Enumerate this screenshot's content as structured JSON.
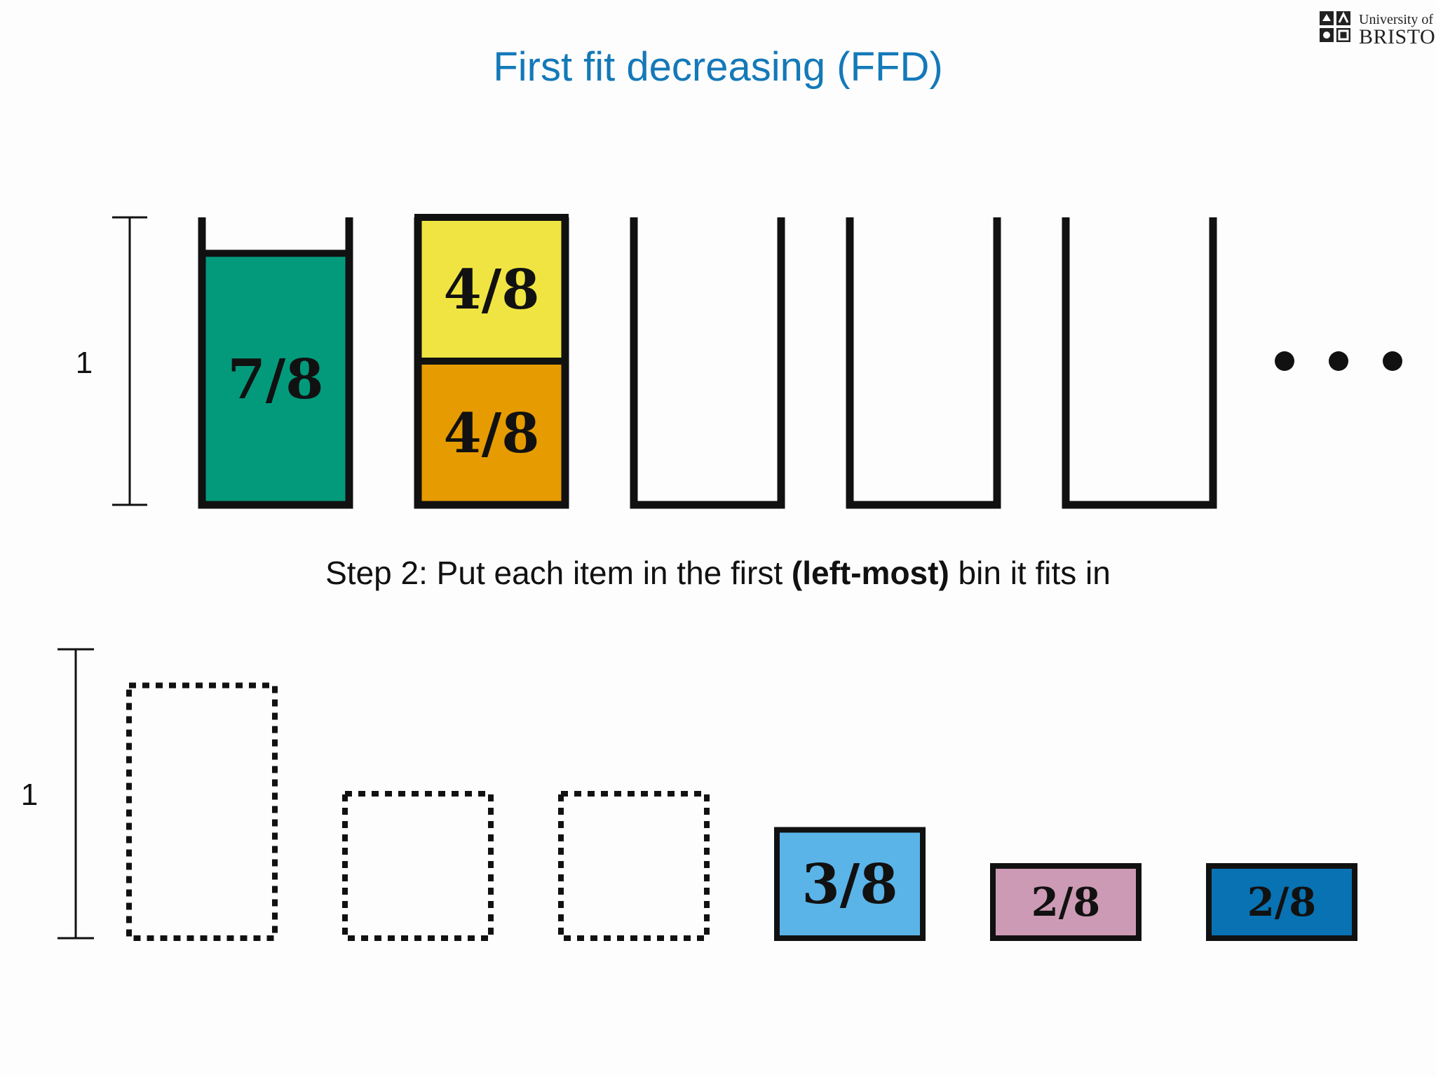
{
  "title": "First fit decreasing (FFD)",
  "step": {
    "prefix": "Step 2: Put each item in the first ",
    "bold": "(left-most)",
    "suffix": " bin it fits in"
  },
  "logo": {
    "line1": "University of",
    "line2": "BRISTOL"
  },
  "scale_label": "1",
  "ellipsis": "...",
  "colors": {
    "green": "#039a7c",
    "yellow": "#f0e442",
    "orange": "#e69b00",
    "sky": "#5ab4e8",
    "pink": "#cc9ab4",
    "blue": "#0872b3",
    "title": "#1479b8"
  },
  "bins": [
    {
      "items": [
        {
          "label": "7/8",
          "size": 0.875,
          "color": "#039a7c"
        }
      ]
    },
    {
      "items": [
        {
          "label": "4/8",
          "size": 0.5,
          "color": "#e69b00"
        },
        {
          "label": "4/8",
          "size": 0.5,
          "color": "#f0e442"
        }
      ]
    },
    {
      "items": []
    },
    {
      "items": []
    },
    {
      "items": []
    }
  ],
  "item_queue": [
    {
      "label": "7/8",
      "size": 0.875,
      "placed": true
    },
    {
      "label": "4/8",
      "size": 0.5,
      "placed": true
    },
    {
      "label": "4/8",
      "size": 0.5,
      "placed": true
    },
    {
      "label": "3/8",
      "size": 0.375,
      "placed": false,
      "color": "#5ab4e8"
    },
    {
      "label": "2/8",
      "size": 0.25,
      "placed": false,
      "color": "#cc9ab4"
    },
    {
      "label": "2/8",
      "size": 0.25,
      "placed": false,
      "color": "#0872b3"
    }
  ]
}
